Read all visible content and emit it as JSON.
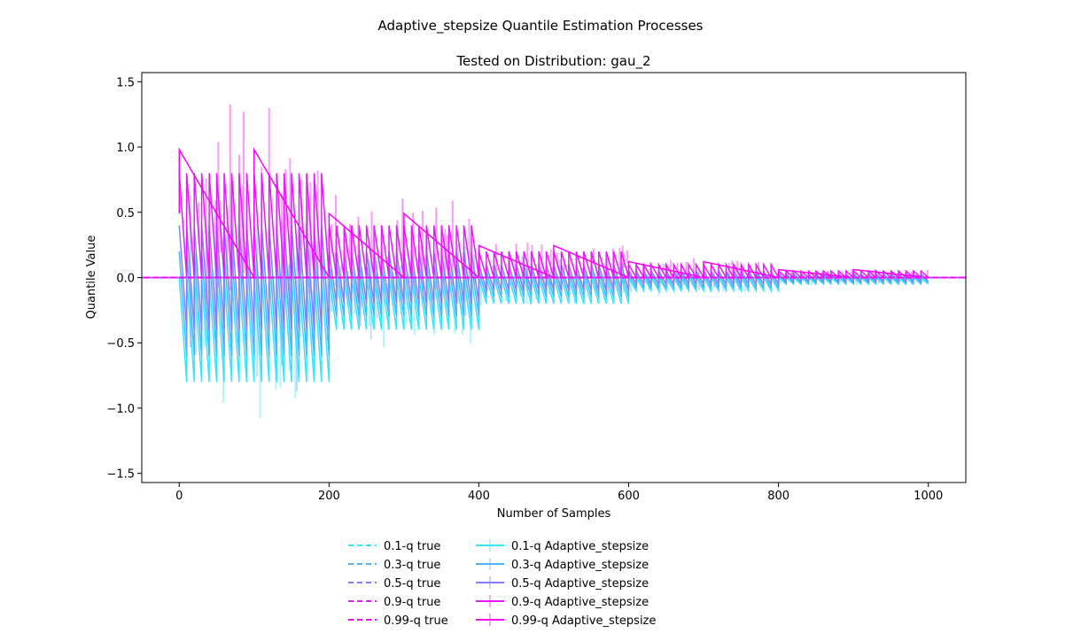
{
  "figure": {
    "suptitle": "Adaptive_stepsize Quantile Estimation Processes"
  },
  "chart_data": {
    "type": "line",
    "title": "Tested on Distribution: gau_2",
    "xlabel": "Number of Samples",
    "ylabel": "Quantile Value",
    "xlim": [
      -50,
      1050
    ],
    "ylim": [
      -1.57,
      1.57
    ],
    "xticks": [
      0,
      200,
      400,
      600,
      800,
      1000
    ],
    "xtick_labels": [
      "0",
      "200",
      "400",
      "600",
      "800",
      "1000"
    ],
    "yticks": [
      -1.5,
      -1.0,
      -0.5,
      0.0,
      0.5,
      1.0,
      1.5
    ],
    "ytick_labels": [
      "−1.5",
      "−1.0",
      "−0.5",
      "0.0",
      "0.5",
      "1.0",
      "1.5"
    ],
    "grid": false,
    "legend_position": "below plot, two columns",
    "true_quantiles": [
      {
        "name": "0.1-q true",
        "value": 0.0,
        "color": "#33e6ff",
        "style": "dashed"
      },
      {
        "name": "0.3-q true",
        "value": 0.0,
        "color": "#4db2ff",
        "style": "dashed"
      },
      {
        "name": "0.5-q true",
        "value": 0.0,
        "color": "#8080ff",
        "style": "dashed"
      },
      {
        "name": "0.9-q true",
        "value": 0.0,
        "color": "#e61aff",
        "style": "dashed"
      },
      {
        "name": "0.99-q true",
        "value": 0.0,
        "color": "#fd02ff",
        "style": "dashed"
      }
    ],
    "estimate_series": [
      {
        "name": "0.1-q Adaptive_stepsize",
        "color": "#33e6ff",
        "quantile": 0.1,
        "segments": [
          {
            "x_start": 0,
            "x_end": 200,
            "low": -0.8,
            "high": 0.0
          },
          {
            "x_start": 200,
            "x_end": 400,
            "low": -0.4,
            "high": 0.0
          },
          {
            "x_start": 400,
            "x_end": 600,
            "low": -0.2,
            "high": 0.0
          },
          {
            "x_start": 600,
            "x_end": 800,
            "low": -0.1,
            "high": 0.0
          },
          {
            "x_start": 800,
            "x_end": 1000,
            "low": -0.05,
            "high": 0.0
          }
        ]
      },
      {
        "name": "0.3-q Adaptive_stepsize",
        "color": "#4db2ff",
        "quantile": 0.3,
        "segments": [
          {
            "x_start": 0,
            "x_end": 200,
            "low": -0.6,
            "high": 0.2
          },
          {
            "x_start": 200,
            "x_end": 400,
            "low": -0.3,
            "high": 0.1
          },
          {
            "x_start": 400,
            "x_end": 600,
            "low": -0.15,
            "high": 0.05
          },
          {
            "x_start": 600,
            "x_end": 800,
            "low": -0.08,
            "high": 0.03
          },
          {
            "x_start": 800,
            "x_end": 1000,
            "low": -0.04,
            "high": 0.02
          }
        ]
      },
      {
        "name": "0.5-q Adaptive_stepsize",
        "color": "#8080ff",
        "quantile": 0.5,
        "segments": [
          {
            "x_start": 0,
            "x_end": 200,
            "low": -0.4,
            "high": 0.4
          },
          {
            "x_start": 200,
            "x_end": 400,
            "low": -0.2,
            "high": 0.2
          },
          {
            "x_start": 400,
            "x_end": 600,
            "low": -0.1,
            "high": 0.1
          },
          {
            "x_start": 600,
            "x_end": 800,
            "low": -0.05,
            "high": 0.05
          },
          {
            "x_start": 800,
            "x_end": 1000,
            "low": -0.03,
            "high": 0.03
          }
        ]
      },
      {
        "name": "0.9-q Adaptive_stepsize",
        "color": "#e61aff",
        "quantile": 0.9,
        "segments": [
          {
            "x_start": 0,
            "x_end": 200,
            "low": 0.0,
            "high": 0.8
          },
          {
            "x_start": 200,
            "x_end": 400,
            "low": 0.0,
            "high": 0.4
          },
          {
            "x_start": 400,
            "x_end": 600,
            "low": 0.0,
            "high": 0.2
          },
          {
            "x_start": 600,
            "x_end": 800,
            "low": 0.0,
            "high": 0.1
          },
          {
            "x_start": 800,
            "x_end": 1000,
            "low": 0.0,
            "high": 0.05
          }
        ]
      },
      {
        "name": "0.99-q Adaptive_stepsize",
        "color": "#fd02ff",
        "quantile": 0.99,
        "segments": [
          {
            "x_start": 0,
            "x_end": 100,
            "peak": 0.98
          },
          {
            "x_start": 100,
            "x_end": 200,
            "peak": 0.98
          },
          {
            "x_start": 200,
            "x_end": 300,
            "peak": 0.49
          },
          {
            "x_start": 300,
            "x_end": 400,
            "peak": 0.49
          },
          {
            "x_start": 400,
            "x_end": 500,
            "peak": 0.245
          },
          {
            "x_start": 500,
            "x_end": 600,
            "peak": 0.245
          },
          {
            "x_start": 600,
            "x_end": 700,
            "peak": 0.122
          },
          {
            "x_start": 700,
            "x_end": 800,
            "peak": 0.122
          },
          {
            "x_start": 800,
            "x_end": 900,
            "peak": 0.061
          },
          {
            "x_start": 900,
            "x_end": 1000,
            "peak": 0.061
          }
        ]
      }
    ],
    "legend_col1": [
      "0.1-q true",
      "0.3-q true",
      "0.5-q true",
      "0.9-q true",
      "0.99-q true"
    ],
    "legend_col2": [
      "0.1-q Adaptive_stepsize",
      "0.3-q Adaptive_stepsize",
      "0.5-q Adaptive_stepsize",
      "0.9-q Adaptive_stepsize",
      "0.99-q Adaptive_stepsize"
    ],
    "legend_colors": [
      "#33e6ff",
      "#4db2ff",
      "#8080ff",
      "#e61aff",
      "#fd02ff"
    ]
  }
}
